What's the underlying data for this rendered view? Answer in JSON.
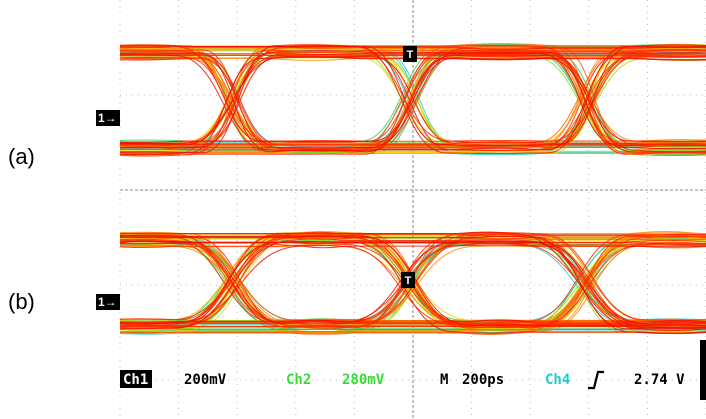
{
  "panels": [
    {
      "label": "(a)",
      "channel_marker": "1→",
      "trigger_marker": "T"
    },
    {
      "label": "(b)",
      "channel_marker": "1→",
      "trigger_marker": "T"
    }
  ],
  "status_bar": {
    "ch1": "Ch1",
    "ch1_scale": "200mV",
    "ch2": "Ch2",
    "ch2_scale": "280mV",
    "timebase_label": "M",
    "timebase": "200ps",
    "trigger_source": "Ch4",
    "trigger_level": "2.74 V"
  }
}
